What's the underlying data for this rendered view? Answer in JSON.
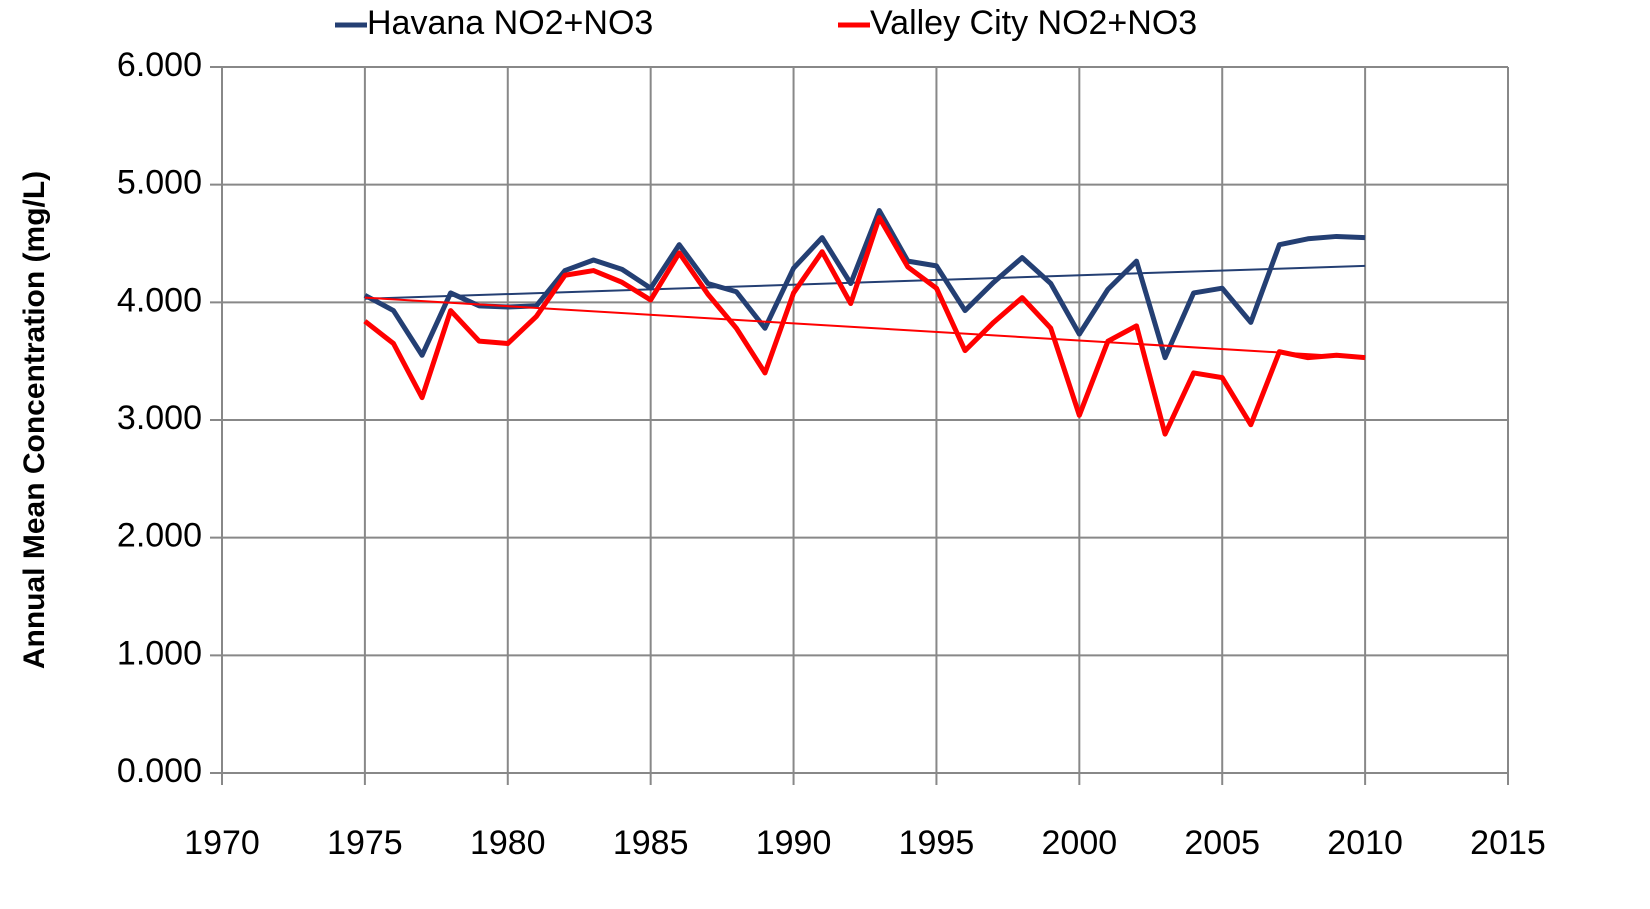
{
  "chart_data": {
    "type": "line",
    "y_label": "Annual Mean Concentration (mg/L)",
    "x": [
      1975,
      1976,
      1977,
      1978,
      1979,
      1980,
      1981,
      1982,
      1983,
      1984,
      1985,
      1986,
      1987,
      1988,
      1989,
      1990,
      1991,
      1992,
      1993,
      1994,
      1995,
      1996,
      1997,
      1998,
      1999,
      2000,
      2001,
      2002,
      2003,
      2004,
      2005,
      2006,
      2007,
      2008,
      2009,
      2010
    ],
    "series": [
      {
        "name": "Havana NO2+NO3",
        "color": "#243f73",
        "values": [
          4.06,
          3.93,
          3.55,
          4.08,
          3.97,
          3.96,
          3.97,
          4.27,
          4.36,
          4.28,
          4.12,
          4.49,
          4.16,
          4.09,
          3.78,
          4.29,
          4.55,
          4.16,
          4.78,
          4.35,
          4.31,
          3.93,
          4.17,
          4.38,
          4.16,
          3.73,
          4.11,
          4.35,
          3.53,
          4.08,
          4.12,
          3.83,
          4.49,
          4.54,
          4.56,
          4.55
        ],
        "trend": {
          "x": [
            1975,
            2010
          ],
          "values": [
            4.03,
            4.31
          ]
        }
      },
      {
        "name": "Valley City NO2+NO3",
        "color": "#ff0000",
        "values": [
          3.84,
          3.65,
          3.19,
          3.93,
          3.67,
          3.65,
          3.88,
          4.23,
          4.27,
          4.17,
          4.02,
          4.42,
          4.07,
          3.78,
          3.4,
          4.08,
          4.43,
          3.99,
          4.72,
          4.3,
          4.12,
          3.59,
          3.83,
          4.04,
          3.78,
          3.04,
          3.67,
          3.8,
          2.88,
          3.4,
          3.36,
          2.96,
          3.58,
          3.53,
          3.55,
          3.53
        ],
        "trend": {
          "x": [
            1975,
            2010
          ],
          "values": [
            4.04,
            3.53
          ]
        }
      }
    ],
    "xlim": [
      1970,
      2015
    ],
    "xticks": [
      1970,
      1975,
      1980,
      1985,
      1990,
      1995,
      2000,
      2005,
      2010,
      2015
    ],
    "ylim": [
      0,
      6
    ],
    "yticks": [
      {
        "value": 0,
        "label": "0.000"
      },
      {
        "value": 1,
        "label": "1.000"
      },
      {
        "value": 2,
        "label": "2.000"
      },
      {
        "value": 3,
        "label": "3.000"
      },
      {
        "value": 4,
        "label": "4.000"
      },
      {
        "value": 5,
        "label": "5.000"
      },
      {
        "value": 6,
        "label": "6.000"
      }
    ],
    "grid": true,
    "legend": "top"
  }
}
